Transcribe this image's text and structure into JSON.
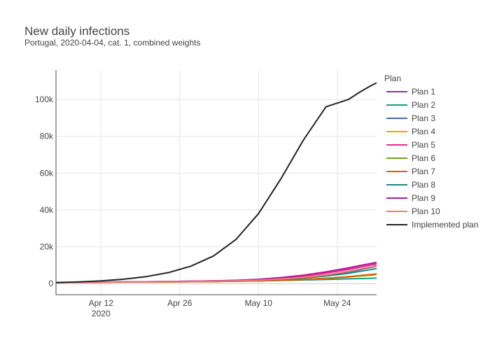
{
  "chart_data": {
    "type": "line",
    "title": "New daily infections",
    "subtitle": "Portugal, 2020-04-04, cat. 1, combined weights",
    "xlabel": "",
    "ylabel": "",
    "xlim": [
      0,
      57
    ],
    "ylim": [
      -6000,
      116000
    ],
    "x_ticks": [
      {
        "x": 8,
        "label": "Apr 12",
        "sublabel": "2020"
      },
      {
        "x": 22,
        "label": "Apr 26",
        "sublabel": ""
      },
      {
        "x": 36,
        "label": "May 10",
        "sublabel": ""
      },
      {
        "x": 50,
        "label": "May 24",
        "sublabel": ""
      }
    ],
    "y_ticks": [
      {
        "value": 0,
        "label": "0"
      },
      {
        "value": 20000,
        "label": "20k"
      },
      {
        "value": 40000,
        "label": "40k"
      },
      {
        "value": 60000,
        "label": "60k"
      },
      {
        "value": 80000,
        "label": "80k"
      },
      {
        "value": 100000,
        "label": "100k"
      }
    ],
    "grid": true,
    "legend_title": "Plan",
    "legend_position": "right",
    "x": [
      0,
      4,
      8,
      12,
      16,
      20,
      24,
      28,
      32,
      36,
      40,
      44,
      48,
      52,
      54,
      56,
      57
    ],
    "series": [
      {
        "name": "Plan 1",
        "color": "#7b3f8f",
        "values": [
          600,
          700,
          850,
          950,
          1050,
          1150,
          1300,
          1500,
          1750,
          2300,
          3200,
          4400,
          6200,
          8400,
          9700,
          11000,
          11600
        ]
      },
      {
        "name": "Plan 2",
        "color": "#1a9e77",
        "values": [
          600,
          700,
          800,
          850,
          900,
          950,
          1050,
          1150,
          1300,
          1500,
          1750,
          2000,
          2300,
          2600,
          2750,
          2900,
          3000
        ]
      },
      {
        "name": "Plan 3",
        "color": "#3d6fb2",
        "values": [
          600,
          700,
          800,
          900,
          1000,
          1100,
          1200,
          1350,
          1600,
          1950,
          2500,
          3300,
          4500,
          6300,
          7500,
          8800,
          9500
        ]
      },
      {
        "name": "Plan 4",
        "color": "#e6ab02",
        "values": [
          600,
          700,
          800,
          850,
          900,
          950,
          1050,
          1150,
          1300,
          1500,
          1800,
          2200,
          2800,
          3600,
          4100,
          4600,
          4900
        ]
      },
      {
        "name": "Plan 5",
        "color": "#e7298a",
        "values": [
          600,
          700,
          850,
          950,
          1050,
          1150,
          1300,
          1450,
          1700,
          2200,
          3000,
          4100,
          5700,
          7700,
          8900,
          10100,
          10700
        ]
      },
      {
        "name": "Plan 6",
        "color": "#66a61e",
        "values": [
          600,
          700,
          800,
          850,
          900,
          950,
          1050,
          1150,
          1300,
          1550,
          1850,
          2250,
          2900,
          3700,
          4200,
          4700,
          5000
        ]
      },
      {
        "name": "Plan 7",
        "color": "#d95f02",
        "values": [
          600,
          700,
          800,
          850,
          900,
          950,
          1050,
          1150,
          1300,
          1500,
          1800,
          2250,
          2900,
          3800,
          4400,
          5000,
          5300
        ]
      },
      {
        "name": "Plan 8",
        "color": "#1b8a8c",
        "values": [
          600,
          700,
          800,
          900,
          950,
          1050,
          1150,
          1300,
          1500,
          1850,
          2300,
          3000,
          4100,
          5600,
          6600,
          7600,
          8200
        ]
      },
      {
        "name": "Plan 9",
        "color": "#b5179e",
        "values": [
          600,
          700,
          850,
          950,
          1050,
          1150,
          1300,
          1500,
          1800,
          2350,
          3300,
          4600,
          6400,
          8600,
          9800,
          10900,
          11400
        ]
      },
      {
        "name": "Plan 10",
        "color": "#f07b72",
        "values": [
          600,
          700,
          800,
          900,
          950,
          1050,
          1150,
          1300,
          1500,
          1900,
          2500,
          3400,
          4800,
          6700,
          7900,
          9100,
          9800
        ]
      },
      {
        "name": "Implemented plan",
        "color": "#222222",
        "values": [
          600,
          900,
          1500,
          2400,
          3800,
          6000,
          9500,
          15000,
          24000,
          38000,
          57000,
          78000,
          96000,
          100000,
          104000,
          107500,
          109000
        ]
      }
    ]
  }
}
